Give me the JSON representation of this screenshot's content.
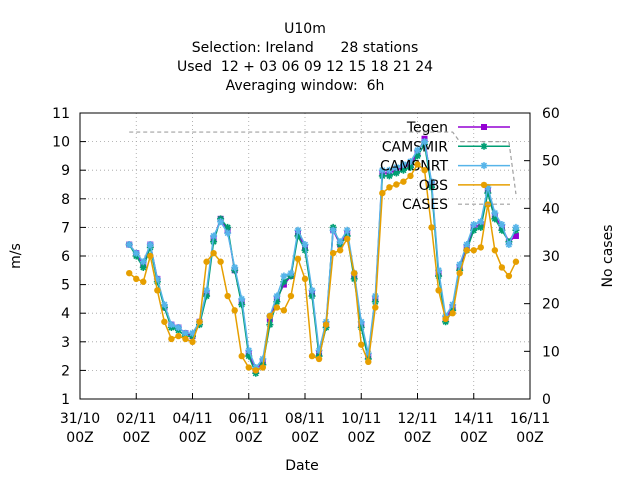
{
  "chart_data": {
    "type": "line",
    "title": "U10m",
    "subtitle": [
      "Selection: Ireland      28 stations",
      "Used  12 + 03 06 09 12 15 18 21 24",
      "Averaging window:  6h"
    ],
    "x_label": "Date",
    "y_label": "m/s",
    "y2_label": "No cases",
    "xlim": [
      "31/10 00Z",
      "16/11 00Z"
    ],
    "xticks": [
      "31/10 00Z",
      "02/11 00Z",
      "04/11 00Z",
      "06/11 00Z",
      "08/11 00Z",
      "10/11 00Z",
      "12/11 00Z",
      "14/11 00Z",
      "16/11 00Z"
    ],
    "ylim": [
      1,
      11
    ],
    "yticks": [
      1,
      2,
      3,
      4,
      5,
      6,
      7,
      8,
      9,
      10,
      11
    ],
    "y2lim": [
      0,
      60
    ],
    "y2ticks": [
      0,
      10,
      20,
      30,
      40,
      50,
      60
    ],
    "grid": true,
    "legend": "top-right",
    "x": [
      "01/11 18Z",
      "02/11 00Z",
      "02/11 06Z",
      "02/11 12Z",
      "02/11 18Z",
      "03/11 00Z",
      "03/11 06Z",
      "03/11 12Z",
      "03/11 18Z",
      "04/11 00Z",
      "04/11 06Z",
      "04/11 12Z",
      "04/11 18Z",
      "05/11 00Z",
      "05/11 06Z",
      "05/11 12Z",
      "05/11 18Z",
      "06/11 00Z",
      "06/11 06Z",
      "06/11 12Z",
      "06/11 18Z",
      "07/11 00Z",
      "07/11 06Z",
      "07/11 12Z",
      "07/11 18Z",
      "08/11 00Z",
      "08/11 06Z",
      "08/11 12Z",
      "08/11 18Z",
      "09/11 00Z",
      "09/11 06Z",
      "09/11 12Z",
      "09/11 18Z",
      "10/11 00Z",
      "10/11 06Z",
      "10/11 12Z",
      "10/11 18Z",
      "11/11 00Z",
      "11/11 06Z",
      "11/11 12Z",
      "11/11 18Z",
      "12/11 00Z",
      "12/11 06Z",
      "12/11 12Z",
      "12/11 18Z",
      "13/11 00Z",
      "13/11 06Z",
      "13/11 12Z",
      "13/11 18Z",
      "14/11 00Z",
      "14/11 06Z",
      "14/11 12Z",
      "14/11 18Z",
      "15/11 00Z",
      "15/11 06Z",
      "15/11 12Z"
    ],
    "series": [
      {
        "name": "Tegen",
        "color": "#9400d3",
        "marker": "square",
        "values": [
          6.4,
          6.1,
          5.7,
          6.4,
          5.2,
          4.2,
          3.6,
          3.5,
          3.3,
          3.2,
          3.7,
          4.7,
          6.6,
          7.3,
          6.9,
          5.5,
          4.4,
          2.6,
          2.0,
          2.3,
          3.8,
          4.5,
          5.0,
          5.3,
          6.8,
          6.3,
          4.7,
          2.6,
          3.6,
          6.9,
          6.4,
          6.8,
          5.3,
          3.6,
          2.5,
          4.5,
          8.9,
          8.9,
          9.0,
          9.1,
          9.2,
          9.6,
          10.1,
          8.5,
          5.4,
          3.8,
          4.2,
          5.6,
          6.3,
          7.0,
          7.1,
          8.3,
          7.4,
          7.0,
          6.5,
          6.7
        ]
      },
      {
        "name": "CAMSMIR",
        "color": "#009e73",
        "marker": "star",
        "values": [
          6.4,
          6.0,
          5.6,
          6.3,
          5.1,
          4.2,
          3.5,
          3.4,
          3.2,
          3.2,
          3.6,
          4.6,
          6.5,
          7.3,
          7.0,
          5.5,
          4.3,
          2.5,
          1.9,
          2.2,
          3.6,
          4.4,
          5.1,
          5.3,
          6.7,
          6.2,
          4.6,
          2.5,
          3.5,
          7.0,
          6.4,
          6.7,
          5.2,
          3.5,
          2.4,
          4.4,
          8.8,
          8.8,
          8.9,
          9.0,
          9.1,
          9.5,
          9.9,
          8.4,
          5.3,
          3.7,
          4.1,
          5.5,
          6.2,
          6.9,
          7.0,
          8.2,
          7.3,
          6.9,
          6.5,
          6.9
        ]
      },
      {
        "name": "CAMSNRT",
        "color": "#56b4e9",
        "marker": "star",
        "values": [
          6.4,
          6.1,
          5.8,
          6.4,
          5.2,
          4.3,
          3.6,
          3.5,
          3.3,
          3.3,
          3.7,
          4.8,
          6.7,
          7.2,
          6.8,
          5.6,
          4.5,
          2.7,
          2.1,
          2.4,
          3.9,
          4.6,
          5.3,
          5.4,
          6.9,
          6.4,
          4.8,
          2.7,
          3.7,
          6.9,
          6.5,
          6.9,
          5.4,
          3.7,
          2.6,
          4.6,
          9.0,
          9.0,
          9.1,
          9.2,
          9.3,
          9.7,
          10.0,
          8.6,
          5.5,
          3.9,
          4.3,
          5.7,
          6.4,
          7.1,
          7.2,
          8.4,
          7.5,
          7.1,
          6.4,
          7.0
        ]
      },
      {
        "name": "OBS",
        "color": "#e69f00",
        "marker": "circle",
        "values": [
          5.4,
          5.2,
          5.1,
          6.0,
          4.8,
          3.7,
          3.1,
          3.2,
          3.1,
          3.0,
          3.7,
          5.8,
          6.1,
          5.8,
          4.6,
          4.1,
          2.5,
          2.1,
          2.0,
          2.1,
          3.9,
          4.2,
          4.1,
          4.6,
          5.9,
          5.2,
          2.5,
          2.4,
          3.6,
          6.1,
          6.2,
          6.6,
          5.4,
          2.9,
          2.3,
          4.2,
          8.2,
          8.4,
          8.5,
          8.6,
          8.8,
          9.2,
          9.0,
          7.0,
          4.8,
          3.8,
          4.0,
          5.4,
          6.2,
          6.2,
          6.3,
          7.8,
          6.2,
          5.6,
          5.3,
          5.8
        ]
      },
      {
        "name": "CASES",
        "color": "#a0a0a0",
        "axis": "y2",
        "dashed": true,
        "values": [
          56,
          56,
          56,
          56,
          56,
          56,
          56,
          56,
          56,
          56,
          56,
          56,
          56,
          56,
          56,
          56,
          56,
          56,
          56,
          56,
          56,
          56,
          56,
          56,
          56,
          56,
          56,
          56,
          56,
          56,
          56,
          56,
          56,
          56,
          56,
          56,
          56,
          56,
          56,
          56,
          56,
          56,
          56,
          56,
          56,
          56,
          56,
          54,
          54,
          54,
          54,
          54,
          54,
          54,
          54,
          43
        ]
      }
    ]
  }
}
